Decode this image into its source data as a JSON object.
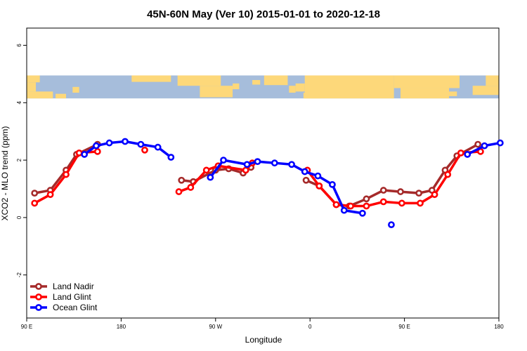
{
  "chart_data": {
    "type": "line",
    "title": "45N-60N May (Ver 10)   2015-01-01 to 2020-12-18",
    "xlabel": "Longitude",
    "ylabel": "XCO2 - MLO trend (ppm)",
    "xlim": [
      90,
      450
    ],
    "ylim": [
      -3.5,
      6.6
    ],
    "x_ticks": [
      {
        "value": 90,
        "label": "90 E"
      },
      {
        "value": 162,
        "label": "180"
      },
      {
        "value": 234,
        "label": "90 W"
      },
      {
        "value": 306,
        "label": "0"
      },
      {
        "value": 378,
        "label": "90 E"
      },
      {
        "value": 450,
        "label": "180"
      }
    ],
    "y_ticks": [
      {
        "value": -2,
        "label": "-2"
      },
      {
        "value": 0,
        "label": "0"
      },
      {
        "value": 2,
        "label": "2"
      },
      {
        "value": 4,
        "label": "4"
      },
      {
        "value": 6,
        "label": "6"
      }
    ],
    "map_band": {
      "y_from": 4.15,
      "y_to": 4.95,
      "ocean_color": "#a6bddb",
      "land_color": "#fdd87a"
    },
    "legend_position": "bottom-left",
    "series": [
      {
        "name": "Land Nadir",
        "color": "#a52a2a",
        "segments": [
          [
            [
              96,
              0.85
            ],
            [
              108,
              0.95
            ],
            [
              120,
              1.65
            ],
            [
              128,
              2.2
            ],
            [
              144,
              2.55
            ]
          ],
          [
            [
              208,
              1.3
            ],
            [
              217,
              1.25
            ],
            [
              234,
              1.65
            ],
            [
              244,
              1.7
            ],
            [
              255,
              1.55
            ],
            [
              261,
              1.75
            ]
          ],
          [
            [
              303,
              1.3
            ],
            [
              313,
              1.1
            ],
            [
              326,
              0.45
            ],
            [
              336,
              0.4
            ],
            [
              349,
              0.65
            ],
            [
              362,
              0.95
            ],
            [
              375,
              0.9
            ],
            [
              389,
              0.85
            ],
            [
              399,
              0.95
            ],
            [
              409,
              1.65
            ],
            [
              418,
              2.15
            ],
            [
              434,
              2.55
            ]
          ]
        ]
      },
      {
        "name": "Land Glint",
        "color": "#ff0000",
        "segments": [
          [
            [
              96,
              0.5
            ],
            [
              108,
              0.8
            ],
            [
              120,
              1.5
            ],
            [
              130,
              2.25
            ],
            [
              144,
              2.3
            ]
          ],
          [
            [
              180,
              2.35
            ]
          ],
          [
            [
              206,
              0.9
            ],
            [
              215,
              1.05
            ],
            [
              227,
              1.65
            ],
            [
              236,
              1.8
            ],
            [
              257,
              1.65
            ],
            [
              262,
              1.9
            ]
          ],
          [
            [
              304,
              1.65
            ],
            [
              313,
              1.1
            ],
            [
              326,
              0.45
            ],
            [
              337,
              0.4
            ],
            [
              349,
              0.4
            ],
            [
              362,
              0.55
            ],
            [
              376,
              0.5
            ],
            [
              390,
              0.5
            ],
            [
              401,
              0.8
            ],
            [
              411,
              1.5
            ],
            [
              421,
              2.25
            ],
            [
              436,
              2.3
            ]
          ]
        ]
      },
      {
        "name": "Ocean Glint",
        "color": "#0000ff",
        "segments": [
          [
            [
              134,
              2.2
            ],
            [
              143,
              2.5
            ],
            [
              153,
              2.6
            ],
            [
              165,
              2.65
            ],
            [
              177,
              2.55
            ],
            [
              190,
              2.45
            ],
            [
              200,
              2.1
            ]
          ],
          [
            [
              230,
              1.4
            ],
            [
              240,
              2.0
            ],
            [
              258,
              1.85
            ],
            [
              266,
              1.95
            ],
            [
              279,
              1.9
            ],
            [
              292,
              1.85
            ],
            [
              302,
              1.6
            ],
            [
              312,
              1.45
            ],
            [
              323,
              1.15
            ],
            [
              332,
              0.25
            ],
            [
              346,
              0.15
            ]
          ],
          [
            [
              368,
              -0.25
            ]
          ],
          [
            [
              426,
              2.2
            ],
            [
              439,
              2.5
            ],
            [
              451,
              2.6
            ]
          ]
        ]
      }
    ]
  }
}
